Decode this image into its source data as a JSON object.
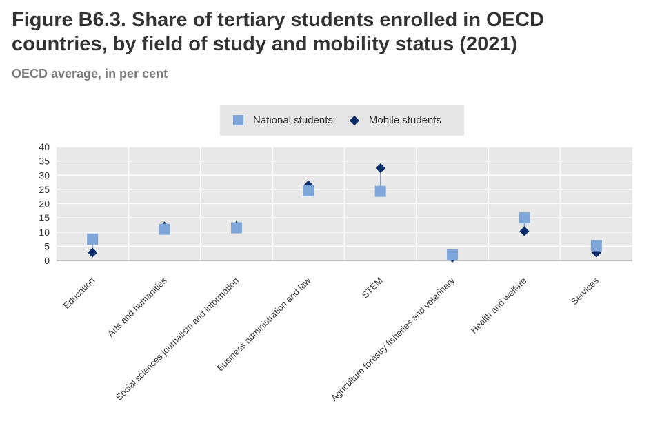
{
  "header": {
    "title": "Figure B6.3. Share of tertiary students enrolled in OECD countries, by field of study and mobility status (2021)",
    "subtitle": "OECD average, in per cent"
  },
  "legend": {
    "national_label": "National students",
    "mobile_label": "Mobile students"
  },
  "colors": {
    "national": "#7ea6d8",
    "mobile": "#0b2f6b",
    "plot_bg": "#e8e8e8",
    "connector": "#7ea6d8"
  },
  "chart_data": {
    "type": "scatter",
    "title": "Figure B6.3. Share of tertiary students enrolled in OECD countries, by field of study and mobility status (2021)",
    "subtitle": "OECD average, in per cent",
    "xlabel": "",
    "ylabel": "",
    "ylim": [
      0,
      40
    ],
    "yticks": [
      0,
      5,
      10,
      15,
      20,
      25,
      30,
      35,
      40
    ],
    "grid": true,
    "legend_position": "top-center",
    "categories": [
      "Education",
      "Arts and humanities",
      "Social sciences journalism and information",
      "Business administration and law",
      "STEM",
      "Agriculture forestry fisheries and veterinary",
      "Health and welfare",
      "Services"
    ],
    "series": [
      {
        "name": "National students",
        "marker": "square",
        "values": [
          7.5,
          11,
          11.5,
          24.5,
          24.3,
          2,
          15,
          5.2
        ]
      },
      {
        "name": "Mobile students",
        "marker": "diamond",
        "values": [
          2.8,
          12,
          12.2,
          26.5,
          32.5,
          1,
          10.3,
          2.8
        ]
      }
    ]
  }
}
